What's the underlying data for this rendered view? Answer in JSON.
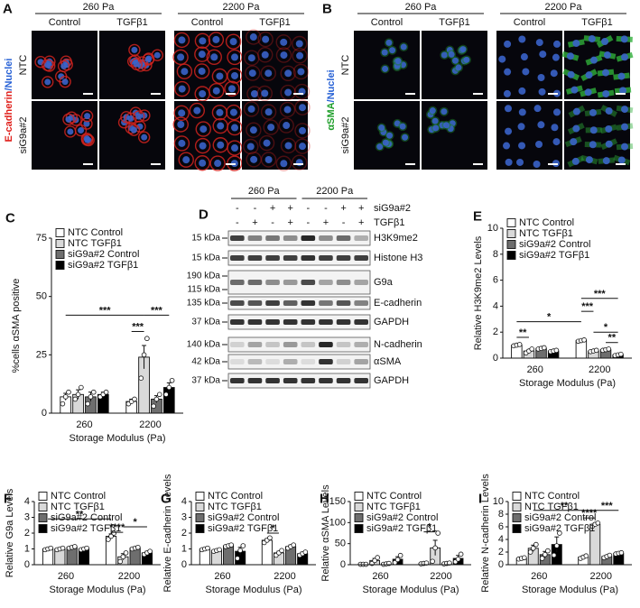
{
  "micrographs": [
    {
      "panel": "A",
      "stain": [
        "E-cadherin",
        "/Nuclei"
      ],
      "rows": [
        "NTC",
        "siG9a#2"
      ],
      "groups": [
        {
          "label": "260 Pa",
          "columns": [
            "Control",
            "TGFβ1"
          ]
        },
        {
          "label": "2200 Pa",
          "columns": [
            "Control",
            "TGFβ1"
          ]
        }
      ]
    },
    {
      "panel": "B",
      "stain": [
        "αSMA",
        "/Nuclei"
      ],
      "rows": [
        "NTC",
        "siG9a#2"
      ],
      "groups": [
        {
          "label": "260 Pa",
          "columns": [
            "Control",
            "TGFβ1"
          ]
        },
        {
          "label": "2200 Pa",
          "columns": [
            "Control",
            "TGFβ1"
          ]
        }
      ]
    }
  ],
  "blot": {
    "panel": "D",
    "groups": [
      "260 Pa",
      "2200 Pa"
    ],
    "conditions": [
      {
        "label": "siG9a#2",
        "signs": [
          "-",
          "-",
          "+",
          "+",
          "-",
          "-",
          "+",
          "+"
        ]
      },
      {
        "label": "TGFβ1",
        "signs": [
          "-",
          "+",
          "-",
          "+",
          "-",
          "+",
          "-",
          "+"
        ]
      }
    ],
    "strips": [
      {
        "protein": "H3K9me2",
        "markers": [
          "15 kDa"
        ]
      },
      {
        "protein": "Histone H3",
        "markers": [
          "15 kDa"
        ]
      },
      {
        "protein": "G9a",
        "markers": [
          "190 kDa",
          "115 kDa"
        ]
      },
      {
        "protein": "E-cadherin",
        "markers": [
          "135 kDa"
        ]
      },
      {
        "protein": "GAPDH",
        "markers": [
          "37 kDa"
        ]
      },
      {
        "protein": "N-cadherin",
        "markers": [
          "140 kDa"
        ]
      },
      {
        "protein": "αSMA",
        "markers": [
          "42 kDa"
        ]
      },
      {
        "protein": "GAPDH",
        "markers": [
          "37 kDa"
        ]
      }
    ]
  },
  "chart_data": [
    {
      "type": "bar",
      "panel": "C",
      "ylabel": "%cells αSMA positive",
      "xlabel": "Storage Modulus (Pa)",
      "categories": [
        "260",
        "2200"
      ],
      "ylim": [
        0,
        75
      ],
      "yticks": [
        0,
        25,
        50,
        75
      ],
      "legend": "upper left",
      "series": [
        {
          "name": "NTC Control",
          "color": "#ffffff",
          "values": [
            7,
            5
          ],
          "errors": [
            1.5,
            1
          ],
          "points": [
            [
              4,
              7,
              9
            ],
            [
              4,
              5,
              6
            ]
          ]
        },
        {
          "name": "NTC TGFβ1",
          "color": "#d9d9d9",
          "values": [
            8,
            24
          ],
          "errors": [
            2,
            5
          ],
          "points": [
            [
              6,
              8,
              11
            ],
            [
              15,
              25,
              32
            ]
          ]
        },
        {
          "name": "siG9a#2 Control",
          "color": "#6e6e6e",
          "values": [
            7,
            6
          ],
          "errors": [
            2,
            1.5
          ],
          "points": [
            [
              4,
              7,
              9
            ],
            [
              3,
              6,
              8
            ]
          ]
        },
        {
          "name": "siG9a#2 TGFβ1",
          "color": "#000000",
          "values": [
            8,
            11
          ],
          "errors": [
            1,
            2
          ],
          "points": [
            [
              7,
              8,
              9
            ],
            [
              8,
              11,
              14
            ]
          ]
        }
      ],
      "annotations": [
        "***",
        "***",
        "***"
      ]
    },
    {
      "type": "bar",
      "panel": "E",
      "ylabel": "Relative H3K9me2 Levels",
      "xlabel": "Storage Modulus (Pa)",
      "categories": [
        "260",
        "2200"
      ],
      "ylim": [
        0,
        10
      ],
      "yticks": [
        0,
        2,
        4,
        6,
        8,
        10
      ],
      "legend": "upper left",
      "series": [
        {
          "name": "NTC Control",
          "color": "#ffffff",
          "values": [
            1.0,
            1.35
          ],
          "errors": [
            0.05,
            0.05
          ],
          "points": [
            [
              0.95,
              1,
              1.05
            ],
            [
              1.3,
              1.35,
              1.4
            ]
          ]
        },
        {
          "name": "NTC TGFβ1",
          "color": "#d9d9d9",
          "values": [
            0.55,
            0.55
          ],
          "errors": [
            0.1,
            0.05
          ],
          "points": [
            [
              0.4,
              0.55,
              0.7
            ],
            [
              0.5,
              0.55,
              0.6
            ]
          ]
        },
        {
          "name": "siG9a#2 Control",
          "color": "#6e6e6e",
          "values": [
            0.75,
            0.65
          ],
          "errors": [
            0.05,
            0.05
          ],
          "points": [
            [
              0.7,
              0.75,
              0.8
            ],
            [
              0.6,
              0.65,
              0.7
            ]
          ]
        },
        {
          "name": "siG9a#2 TGFβ1",
          "color": "#000000",
          "values": [
            0.55,
            0.25
          ],
          "errors": [
            0.05,
            0.05
          ],
          "points": [
            [
              0.5,
              0.55,
              0.6
            ],
            [
              0.2,
              0.25,
              0.3
            ]
          ]
        }
      ],
      "annotations": [
        "**",
        "*",
        "***",
        "***",
        "*",
        "**"
      ]
    },
    {
      "type": "bar",
      "panel": "F",
      "ylabel": "Relative G9a Levels",
      "xlabel": "Storage Modulus (Pa)",
      "categories": [
        "260",
        "2200"
      ],
      "ylim": [
        0,
        4
      ],
      "yticks": [
        0,
        1,
        2,
        3,
        4
      ],
      "legend": "upper left",
      "series": [
        {
          "name": "NTC Control",
          "color": "#ffffff",
          "values": [
            1.0,
            1.8
          ],
          "errors": [
            0.05,
            0.15
          ],
          "points": [
            [
              0.95,
              1,
              1.05
            ],
            [
              1.6,
              1.8,
              2.0
            ]
          ]
        },
        {
          "name": "NTC TGFβ1",
          "color": "#d9d9d9",
          "values": [
            1.0,
            0.5
          ],
          "errors": [
            0.05,
            0.2
          ],
          "points": [
            [
              0.95,
              1,
              1.05
            ],
            [
              0.2,
              0.5,
              0.75
            ]
          ]
        },
        {
          "name": "siG9a#2 Control",
          "color": "#6e6e6e",
          "values": [
            1.1,
            1.05
          ],
          "errors": [
            0.05,
            0.05
          ],
          "points": [
            [
              1.05,
              1.1,
              1.15
            ],
            [
              1.0,
              1.05,
              1.1
            ]
          ]
        },
        {
          "name": "siG9a#2 TGFβ1",
          "color": "#000000",
          "values": [
            1.0,
            0.75
          ],
          "errors": [
            0.05,
            0.1
          ],
          "points": [
            [
              0.95,
              1.0,
              1.05
            ],
            [
              0.65,
              0.75,
              0.85
            ]
          ]
        }
      ],
      "annotations": [
        "**",
        "*",
        "****"
      ]
    },
    {
      "type": "bar",
      "panel": "G",
      "ylabel": "Relative E-cadherin Levels",
      "xlabel": "Storage Modulus (Pa)",
      "categories": [
        "260",
        "2200"
      ],
      "ylim": [
        0,
        4
      ],
      "yticks": [
        0,
        1,
        2,
        3,
        4
      ],
      "legend": "upper left",
      "series": [
        {
          "name": "NTC Control",
          "color": "#ffffff",
          "values": [
            1.0,
            1.55
          ],
          "errors": [
            0.05,
            0.1
          ],
          "points": [
            [
              0.95,
              1,
              1.05
            ],
            [
              1.4,
              1.55,
              1.7
            ]
          ]
        },
        {
          "name": "NTC TGFβ1",
          "color": "#d9d9d9",
          "values": [
            0.9,
            0.75
          ],
          "errors": [
            0.05,
            0.1
          ],
          "points": [
            [
              0.85,
              0.9,
              0.95
            ],
            [
              0.6,
              0.75,
              0.9
            ]
          ]
        },
        {
          "name": "siG9a#2 Control",
          "color": "#6e6e6e",
          "values": [
            1.2,
            1.15
          ],
          "errors": [
            0.05,
            0.1
          ],
          "points": [
            [
              1.15,
              1.2,
              1.25
            ],
            [
              1.05,
              1.15,
              1.25
            ]
          ]
        },
        {
          "name": "siG9a#2 TGFβ1",
          "color": "#000000",
          "values": [
            0.85,
            0.7
          ],
          "errors": [
            0.25,
            0.1
          ],
          "points": [
            [
              0.4,
              0.9,
              1.2
            ],
            [
              0.6,
              0.7,
              0.8
            ]
          ]
        }
      ],
      "annotations": [
        "*"
      ]
    },
    {
      "type": "bar",
      "panel": "H",
      "ylabel": "Relative αSMA Levels",
      "xlabel": "Storage Modulus (Pa)",
      "categories": [
        "260",
        "2200"
      ],
      "ylim": [
        0,
        150
      ],
      "yticks": [
        0,
        50,
        100,
        150
      ],
      "legend": "upper left",
      "series": [
        {
          "name": "NTC Control",
          "color": "#ffffff",
          "values": [
            1,
            3
          ],
          "errors": [
            0.5,
            1
          ],
          "points": [
            [
              1,
              1,
              1
            ],
            [
              2,
              3,
              4
            ]
          ]
        },
        {
          "name": "NTC TGFβ1",
          "color": "#d9d9d9",
          "values": [
            10,
            40
          ],
          "errors": [
            5,
            18
          ],
          "points": [
            [
              3,
              10,
              17
            ],
            [
              8,
              40,
              75
            ]
          ]
        },
        {
          "name": "siG9a#2 Control",
          "color": "#6e6e6e",
          "values": [
            2,
            3
          ],
          "errors": [
            1,
            1
          ],
          "points": [
            [
              1,
              2,
              3
            ],
            [
              2,
              3,
              4
            ]
          ]
        },
        {
          "name": "siG9a#2 TGFβ1",
          "color": "#000000",
          "values": [
            13,
            15
          ],
          "errors": [
            6,
            7
          ],
          "points": [
            [
              5,
              12,
              22
            ],
            [
              7,
              13,
              25
            ]
          ]
        }
      ],
      "annotations": [
        "*"
      ]
    },
    {
      "type": "bar",
      "panel": "I",
      "ylabel": "Relative N-cadherin Levels",
      "xlabel": "Storage Modulus (Pa)",
      "categories": [
        "260",
        "2200"
      ],
      "ylim": [
        0,
        10
      ],
      "yticks": [
        0,
        2,
        4,
        6,
        8,
        10
      ],
      "legend": "upper left",
      "series": [
        {
          "name": "NTC Control",
          "color": "#ffffff",
          "values": [
            1,
            1.2
          ],
          "errors": [
            0.1,
            0.2
          ],
          "points": [
            [
              0.9,
              1,
              1.1
            ],
            [
              1,
              1.2,
              1.4
            ]
          ]
        },
        {
          "name": "NTC TGFβ1",
          "color": "#d9d9d9",
          "values": [
            2.6,
            6.4
          ],
          "errors": [
            0.5,
            0.2
          ],
          "points": [
            [
              2,
              2.6,
              3.2
            ],
            [
              6.1,
              6.4,
              6.6
            ]
          ]
        },
        {
          "name": "siG9a#2 Control",
          "color": "#6e6e6e",
          "values": [
            1.6,
            1.3
          ],
          "errors": [
            0.5,
            0.2
          ],
          "points": [
            [
              1,
              1.6,
              2.2
            ],
            [
              1.1,
              1.3,
              1.5
            ]
          ]
        },
        {
          "name": "siG9a#2 TGFβ1",
          "color": "#000000",
          "values": [
            3.2,
            1.8
          ],
          "errors": [
            1.2,
            0.1
          ],
          "points": [
            [
              1.5,
              3,
              5
            ],
            [
              1.7,
              1.8,
              1.9
            ]
          ]
        }
      ],
      "annotations": [
        "**",
        "***",
        "****"
      ]
    }
  ]
}
